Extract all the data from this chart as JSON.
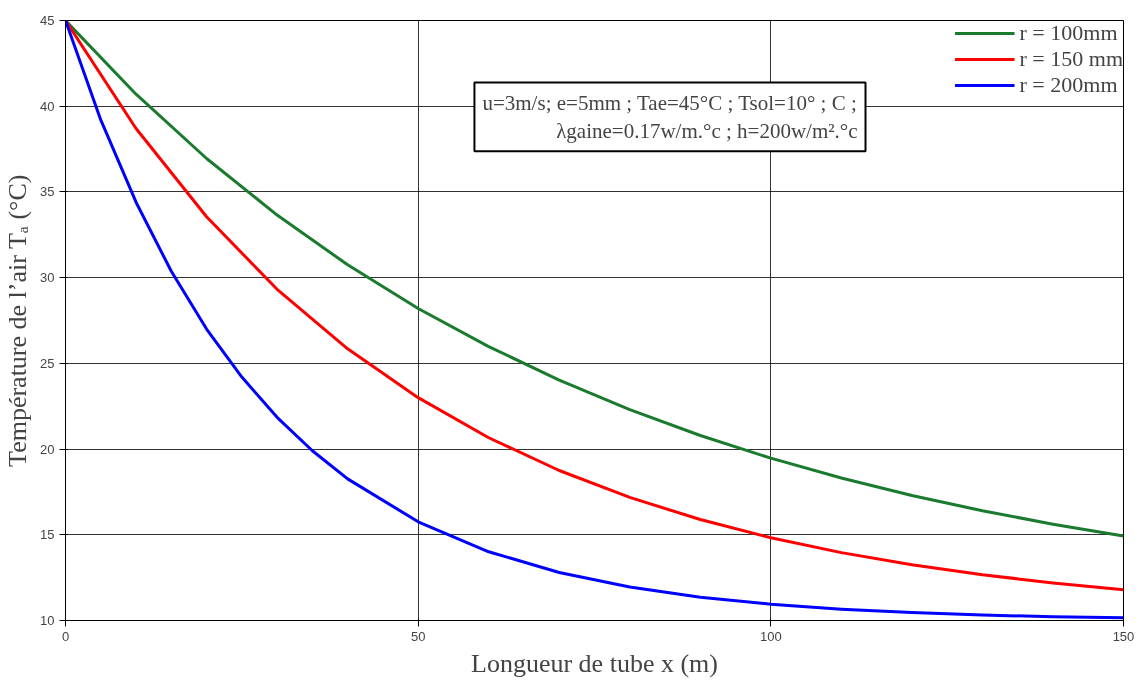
{
  "chart_data": {
    "type": "line",
    "xlabel": "Longueur de tube x (m)",
    "ylabel": "Température de l’air Tₐ (°C)",
    "x": [
      0,
      10,
      20,
      30,
      40,
      50,
      60,
      70,
      80,
      90,
      100,
      110,
      120,
      130,
      140,
      150
    ],
    "series": [
      {
        "name": "r = 100mm",
        "color": "#1a7a2e",
        "values": [
          45,
          40.7,
          36.95,
          33.65,
          30.75,
          28.2,
          25.98,
          24.02,
          22.3,
          20.79,
          19.47,
          18.31,
          17.29,
          16.4,
          15.62,
          14.93
        ]
      },
      {
        "name": "r = 150 mm",
        "color": "#ff0000",
        "values": [
          45,
          38.7,
          33.55,
          29.32,
          25.85,
          23.0,
          20.66,
          18.75,
          17.18,
          15.89,
          14.83,
          13.96,
          13.25,
          12.67,
          12.19,
          11.8
        ]
      },
      {
        "name": "r = 200mm",
        "color": "#0000ff",
        "x": [
          0,
          5,
          10,
          15,
          20,
          25,
          30,
          35,
          40,
          50,
          60,
          70,
          80,
          90,
          100,
          110,
          120,
          130,
          140,
          150
        ],
        "values": [
          45,
          39.2,
          34.4,
          30.37,
          27.0,
          24.2,
          21.85,
          19.9,
          18.26,
          15.76,
          14.01,
          12.8,
          11.95,
          11.36,
          10.95,
          10.66,
          10.46,
          10.32,
          10.22,
          10.16
        ]
      }
    ],
    "annotations": [
      "u=3m/s; e=5mm ; Tae=45°C ; Tsol=10° ; C ;",
      "λgaine=0.17w/m.°c ; h=200w/m².°c"
    ],
    "xlim": [
      0,
      150
    ],
    "ylim": [
      10,
      45
    ],
    "xticks": [
      0,
      50,
      100,
      150
    ],
    "yticks": [
      10,
      15,
      20,
      25,
      30,
      35,
      40,
      45
    ],
    "grid": true,
    "legend": "top right",
    "marker": "none",
    "line_style": "solid"
  }
}
